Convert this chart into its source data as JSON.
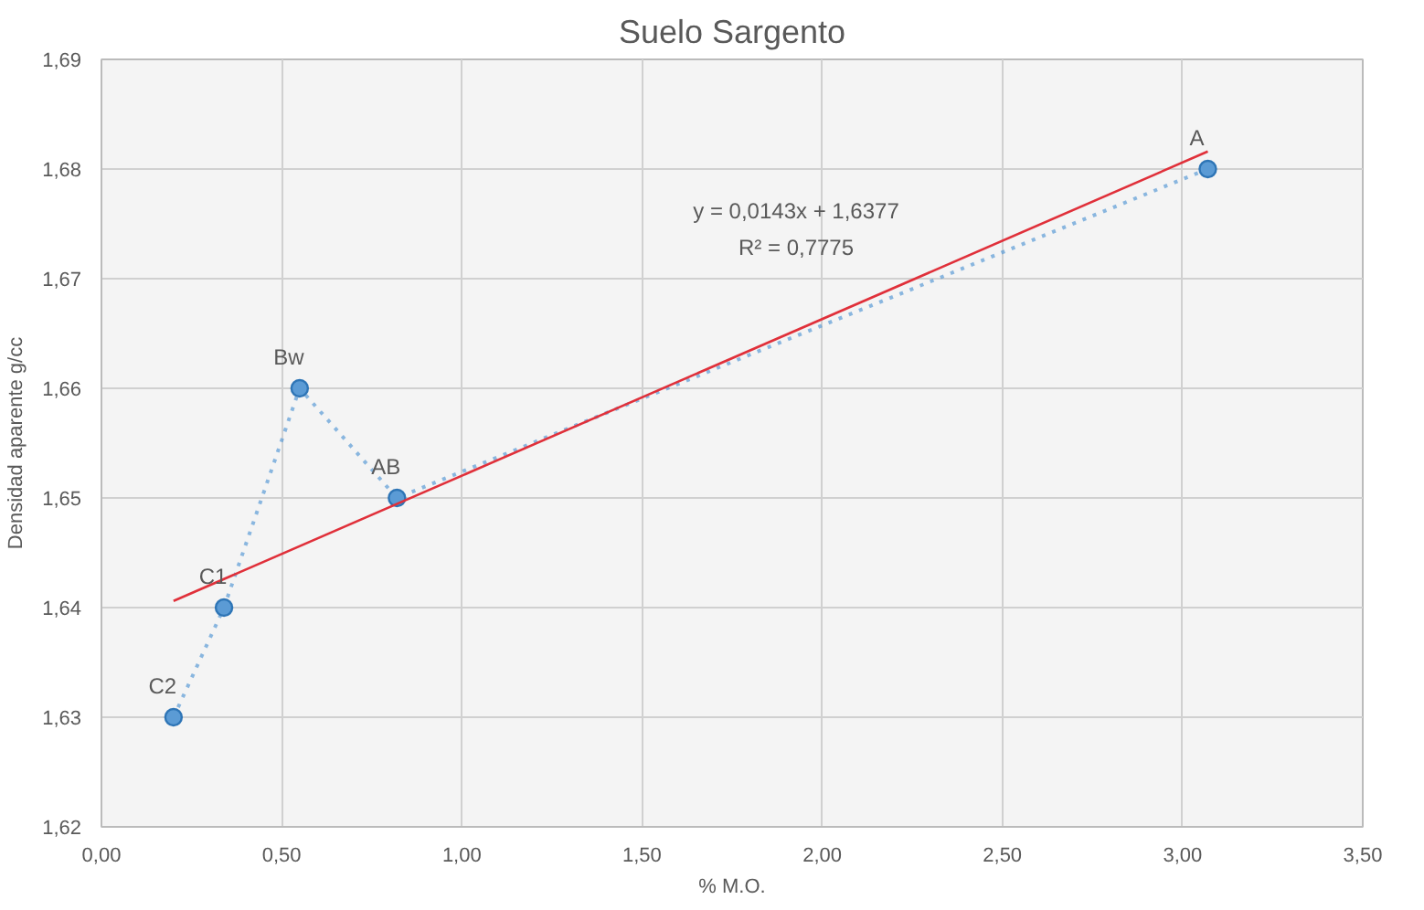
{
  "chart_data": {
    "type": "line",
    "title": "Suelo Sargento",
    "xlabel": "% M.O.",
    "ylabel": "Densidad aparente g/cc",
    "xlim": [
      0,
      3.5
    ],
    "ylim": [
      1.62,
      1.69
    ],
    "xticks": [
      {
        "value": 0,
        "label": "0,00"
      },
      {
        "value": 0.5,
        "label": "0,50"
      },
      {
        "value": 1,
        "label": "1,00"
      },
      {
        "value": 1.5,
        "label": "1,50"
      },
      {
        "value": 2,
        "label": "2,00"
      },
      {
        "value": 2.5,
        "label": "2,50"
      },
      {
        "value": 3,
        "label": "3,00"
      },
      {
        "value": 3.5,
        "label": "3,50"
      }
    ],
    "yticks": [
      {
        "value": 1.62,
        "label": "1,62"
      },
      {
        "value": 1.63,
        "label": "1,63"
      },
      {
        "value": 1.64,
        "label": "1,64"
      },
      {
        "value": 1.65,
        "label": "1,65"
      },
      {
        "value": 1.66,
        "label": "1,66"
      },
      {
        "value": 1.67,
        "label": "1,67"
      },
      {
        "value": 1.68,
        "label": "1,68"
      },
      {
        "value": 1.69,
        "label": "1,69"
      }
    ],
    "grid": true,
    "series": [
      {
        "color": "#5b9bd5",
        "x": [
          0.2,
          0.34,
          0.55,
          0.82,
          3.07
        ],
        "values": [
          1.63,
          1.64,
          1.66,
          1.65,
          1.68
        ],
        "marker": "circle",
        "line_style": "dotted"
      },
      {
        "type": "line",
        "color": "#e0303a",
        "x": [
          0.2,
          3.07
        ],
        "values": [
          1.6406,
          1.6816
        ],
        "marker": "none",
        "line_style": "solid"
      }
    ],
    "annotations": [
      {
        "text": "C2",
        "x": 0.2,
        "y": 1.63
      },
      {
        "text": "C1",
        "x": 0.34,
        "y": 1.64
      },
      {
        "text": "Bw",
        "x": 0.55,
        "y": 1.66
      },
      {
        "text": "AB",
        "x": 0.82,
        "y": 1.65
      },
      {
        "text": "A",
        "x": 3.07,
        "y": 1.68
      },
      "y = 0,0143x + 1,6377",
      "R² = 0,7775"
    ]
  }
}
